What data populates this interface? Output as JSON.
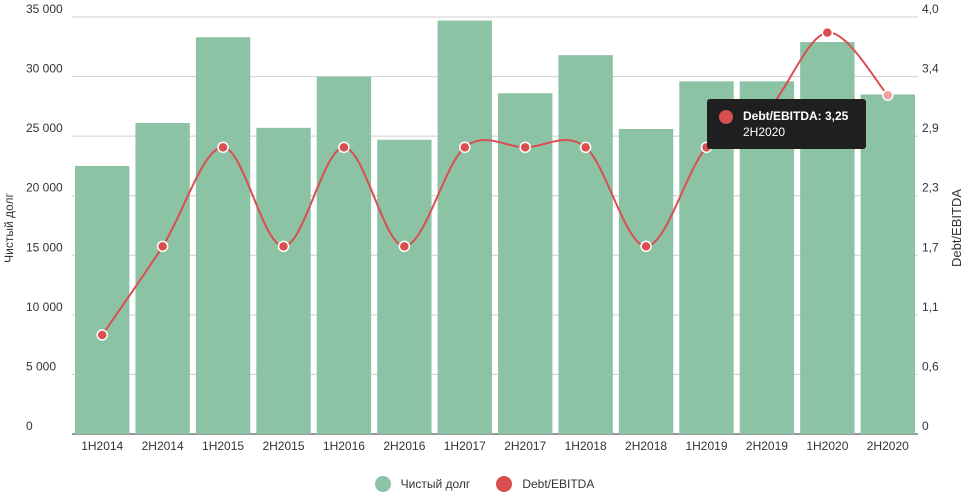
{
  "chart_data": {
    "type": "bar",
    "categories": [
      "1H2014",
      "2H2014",
      "1H2015",
      "2H2015",
      "1H2016",
      "2H2016",
      "1H2017",
      "2H2017",
      "1H2018",
      "2H2018",
      "1H2019",
      "2H2019",
      "1H2020",
      "2H2020"
    ],
    "series": [
      {
        "name": "Чистый долг",
        "type": "bar",
        "axis": "left",
        "color": "#8cc3a5",
        "values": [
          22500,
          26100,
          33300,
          25700,
          30000,
          24700,
          34700,
          28600,
          31800,
          25600,
          29600,
          29600,
          32900,
          28500
        ]
      },
      {
        "name": "Debt/EBITDA",
        "type": "line",
        "axis": "right",
        "color": "#d94f4f",
        "values": [
          0.95,
          1.8,
          2.75,
          1.8,
          2.75,
          1.8,
          2.75,
          2.75,
          2.75,
          1.8,
          2.75,
          3.1,
          3.85,
          3.25
        ]
      }
    ],
    "ylabel": "Чистый долг",
    "ylabel_right": "Debt/EBITDA",
    "ylim": [
      0,
      35000
    ],
    "ylim_right": [
      0,
      4.0
    ],
    "yticks": [
      0,
      5000,
      10000,
      15000,
      20000,
      25000,
      30000,
      35000
    ],
    "ytick_labels": [
      "0",
      "5 000",
      "10 000",
      "15 000",
      "20 000",
      "25 000",
      "30 000",
      "35 000"
    ],
    "yticks_right": [
      0,
      0.57,
      1.14,
      1.71,
      2.29,
      2.86,
      3.43,
      4.0
    ],
    "ytick_labels_right": [
      "0",
      "0,6",
      "1,1",
      "1,7",
      "2,3",
      "2,9",
      "3,4",
      "4,0"
    ],
    "grid": true,
    "legend_position": "bottom"
  },
  "tooltip": {
    "title": "Debt/EBITDA: 3,25",
    "subtitle": "2H2020"
  }
}
